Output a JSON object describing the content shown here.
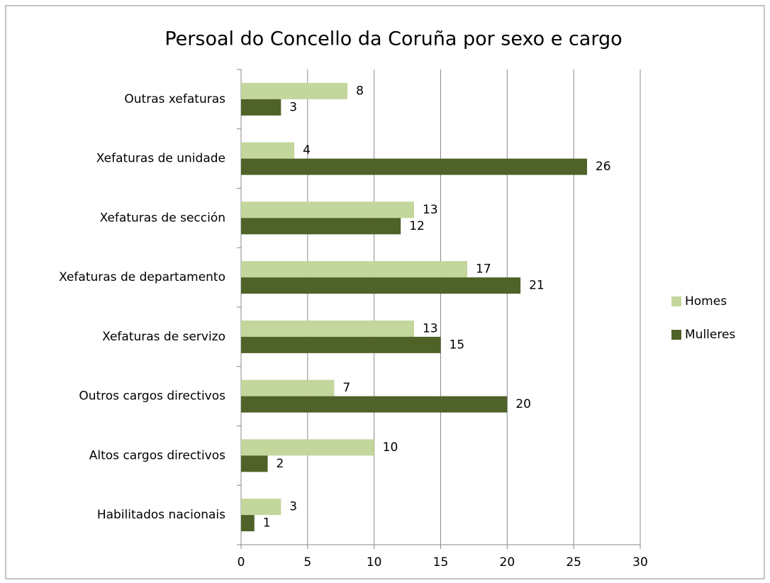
{
  "chart_data": {
    "type": "bar",
    "orientation": "horizontal",
    "title": "Persoal do Concello da Coruña por sexo e cargo",
    "categories": [
      "Outras xefaturas",
      "Xefaturas de unidade",
      "Xefaturas de sección",
      "Xefaturas de departamento",
      "Xefaturas de servizo",
      "Outros cargos directivos",
      "Altos cargos directivos",
      "Habilitados nacionais"
    ],
    "series": [
      {
        "name": "Homes",
        "color": "#c3d69b",
        "values": [
          8,
          4,
          13,
          17,
          13,
          7,
          10,
          3
        ]
      },
      {
        "name": "Mulleres",
        "color": "#4f6228",
        "values": [
          3,
          26,
          12,
          21,
          15,
          20,
          2,
          1
        ]
      }
    ],
    "xlim": [
      0,
      30
    ],
    "xticks": [
      0,
      5,
      10,
      15,
      20,
      25,
      30
    ],
    "grid": true,
    "legend": "right"
  }
}
